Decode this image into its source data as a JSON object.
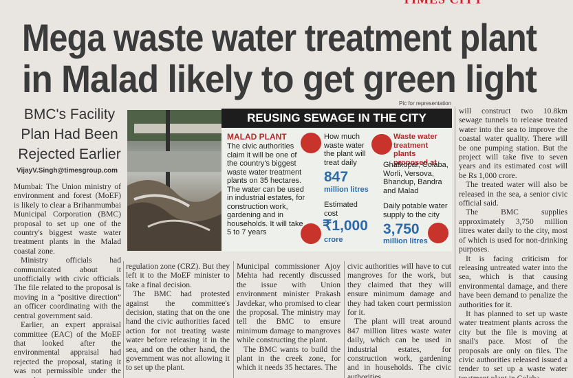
{
  "masthead": "TIMES CITY",
  "headline": [
    "Mega waste water treatment plant",
    "in Malad likely to get green light"
  ],
  "subhead": [
    "BMC's Facility",
    "Plan Had Been",
    "Rejected Earlier"
  ],
  "byline": "VijayV.Singh@timesgroup.com",
  "photo_credit": "Pic for representation",
  "infobox": {
    "title": "REUSING SEWAGE IN THE CITY",
    "malad": {
      "heading": "MALAD PLANT",
      "text": "The civic authorities claim it will be one of the country's biggest waste water treatment plants on 35 hectares. The water can be used in industrial estates, for construction work, gardening and in households. It will take 5 to 7 years"
    },
    "treat": {
      "label": "How much waste water the plant will treat daily",
      "figure": "847",
      "unit": "million litres"
    },
    "cost": {
      "label": "Estimated cost",
      "figure": "₹1,000",
      "unit": "crore"
    },
    "plants": {
      "label": "Waste water treatment plants proposed at",
      "text": "Ghatkopar, Colaba, Worli, Versova, Bhandup, Bandra and Malad"
    },
    "supply": {
      "label": "Daily potable water supply to the city",
      "figure": "3,750",
      "unit": "million litres"
    }
  },
  "article": {
    "dateline": "Mumbai:",
    "col1": [
      "The Union ministry of environment and forest (MoEF) is likely to clear a Brihanmumbai Municipal Corporation (BMC) proposal to set up one of the country's biggest waste water treatment plants in the Malad coastal zone.",
      "Ministry officials had communicated about it unofficially with civic officials. The file related to the proposal is moving in a “positive direction” an officer coordinating with the central government said.",
      "Earlier, an expert appraisal committee (EAC) of the MoEF that looked after the environmental appraisal had rejected the proposal, stating it was not permissible under the coastal"
    ],
    "col2": [
      "regulation zone (CRZ). But they left it to the MoEF minister to take a final decision.",
      "The BMC had protested against the committee's decision, stating that on the one hand the civic authorities faced action for not treating waste water before releasing it in the sea, and on the other hand, the government was not allowing it to set up the plant."
    ],
    "col3": [
      "Municipal commissioner Ajoy Mehta had recently discussed the issue with Union environment minister Prakash Javdekar, who promised to clear the proposal. The ministry may tell the BMC to ensure minimum damage to mangroves while constructing the plant.",
      "The BMC wants to build the plant in the creek zone, for which it needs 35 hectares. The"
    ],
    "col4": [
      "civic authorities will have to cut mangroves for the work, but they claimed that they will ensure minimum damage and they had taken court permission for it.",
      "The plant will treat around 847 million litres waste water daily, which can be used in industrial estates, for construction work, gardening and in households. The civic authorities"
    ],
    "col5": [
      "will construct two 10.8km sewage tunnels to release treated water into the sea to improve the coastal water quality. There will be one pumping station. But the project will take five to seven years and its estimated cost will be Rs 1,000 crore.",
      "The treated water will also be released in the sea, a senior civic official said.",
      "The BMC supplies approximately 3,750 million litres water daily to the city, most of which is used for non-drinking purposes.",
      "It is facing criticism for releasing untreated water into the sea, which is that causing environmental damage, and there have been demand to penalize the authorities for it.",
      "It has planned to set up waste water treatment plants across the city but the file is moving at snail's pace. Most of the proposals are only on files. The civic authorities released issued a tender to set up a waste water treatment plant in Colaba."
    ]
  }
}
